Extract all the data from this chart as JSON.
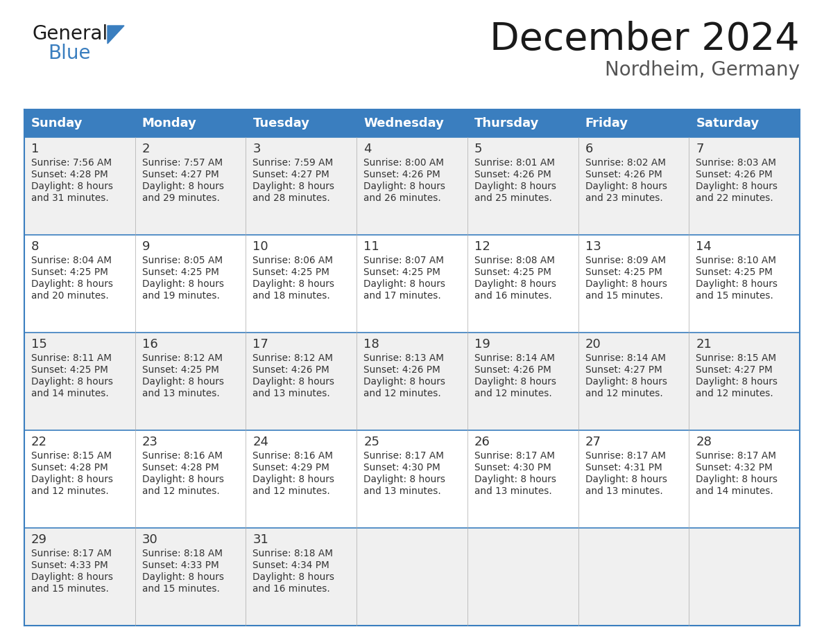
{
  "title": "December 2024",
  "subtitle": "Nordheim, Germany",
  "header_bg_color": "#3a7ebf",
  "header_text_color": "#ffffff",
  "day_names": [
    "Sunday",
    "Monday",
    "Tuesday",
    "Wednesday",
    "Thursday",
    "Friday",
    "Saturday"
  ],
  "cell_bg_even": "#f0f0f0",
  "cell_bg_odd": "#ffffff",
  "border_color": "#3a7ebf",
  "title_color": "#1a1a1a",
  "day_number_color": "#333333",
  "cell_text_color": "#333333",
  "subtitle_color": "#555555",
  "days": [
    {
      "day": 1,
      "col": 0,
      "row": 0,
      "sunrise": "7:56 AM",
      "sunset": "4:28 PM",
      "daylight_min": "31 minutes."
    },
    {
      "day": 2,
      "col": 1,
      "row": 0,
      "sunrise": "7:57 AM",
      "sunset": "4:27 PM",
      "daylight_min": "29 minutes."
    },
    {
      "day": 3,
      "col": 2,
      "row": 0,
      "sunrise": "7:59 AM",
      "sunset": "4:27 PM",
      "daylight_min": "28 minutes."
    },
    {
      "day": 4,
      "col": 3,
      "row": 0,
      "sunrise": "8:00 AM",
      "sunset": "4:26 PM",
      "daylight_min": "26 minutes."
    },
    {
      "day": 5,
      "col": 4,
      "row": 0,
      "sunrise": "8:01 AM",
      "sunset": "4:26 PM",
      "daylight_min": "25 minutes."
    },
    {
      "day": 6,
      "col": 5,
      "row": 0,
      "sunrise": "8:02 AM",
      "sunset": "4:26 PM",
      "daylight_min": "23 minutes."
    },
    {
      "day": 7,
      "col": 6,
      "row": 0,
      "sunrise": "8:03 AM",
      "sunset": "4:26 PM",
      "daylight_min": "22 minutes."
    },
    {
      "day": 8,
      "col": 0,
      "row": 1,
      "sunrise": "8:04 AM",
      "sunset": "4:25 PM",
      "daylight_min": "20 minutes."
    },
    {
      "day": 9,
      "col": 1,
      "row": 1,
      "sunrise": "8:05 AM",
      "sunset": "4:25 PM",
      "daylight_min": "19 minutes."
    },
    {
      "day": 10,
      "col": 2,
      "row": 1,
      "sunrise": "8:06 AM",
      "sunset": "4:25 PM",
      "daylight_min": "18 minutes."
    },
    {
      "day": 11,
      "col": 3,
      "row": 1,
      "sunrise": "8:07 AM",
      "sunset": "4:25 PM",
      "daylight_min": "17 minutes."
    },
    {
      "day": 12,
      "col": 4,
      "row": 1,
      "sunrise": "8:08 AM",
      "sunset": "4:25 PM",
      "daylight_min": "16 minutes."
    },
    {
      "day": 13,
      "col": 5,
      "row": 1,
      "sunrise": "8:09 AM",
      "sunset": "4:25 PM",
      "daylight_min": "15 minutes."
    },
    {
      "day": 14,
      "col": 6,
      "row": 1,
      "sunrise": "8:10 AM",
      "sunset": "4:25 PM",
      "daylight_min": "15 minutes."
    },
    {
      "day": 15,
      "col": 0,
      "row": 2,
      "sunrise": "8:11 AM",
      "sunset": "4:25 PM",
      "daylight_min": "14 minutes."
    },
    {
      "day": 16,
      "col": 1,
      "row": 2,
      "sunrise": "8:12 AM",
      "sunset": "4:25 PM",
      "daylight_min": "13 minutes."
    },
    {
      "day": 17,
      "col": 2,
      "row": 2,
      "sunrise": "8:12 AM",
      "sunset": "4:26 PM",
      "daylight_min": "13 minutes."
    },
    {
      "day": 18,
      "col": 3,
      "row": 2,
      "sunrise": "8:13 AM",
      "sunset": "4:26 PM",
      "daylight_min": "12 minutes."
    },
    {
      "day": 19,
      "col": 4,
      "row": 2,
      "sunrise": "8:14 AM",
      "sunset": "4:26 PM",
      "daylight_min": "12 minutes."
    },
    {
      "day": 20,
      "col": 5,
      "row": 2,
      "sunrise": "8:14 AM",
      "sunset": "4:27 PM",
      "daylight_min": "12 minutes."
    },
    {
      "day": 21,
      "col": 6,
      "row": 2,
      "sunrise": "8:15 AM",
      "sunset": "4:27 PM",
      "daylight_min": "12 minutes."
    },
    {
      "day": 22,
      "col": 0,
      "row": 3,
      "sunrise": "8:15 AM",
      "sunset": "4:28 PM",
      "daylight_min": "12 minutes."
    },
    {
      "day": 23,
      "col": 1,
      "row": 3,
      "sunrise": "8:16 AM",
      "sunset": "4:28 PM",
      "daylight_min": "12 minutes."
    },
    {
      "day": 24,
      "col": 2,
      "row": 3,
      "sunrise": "8:16 AM",
      "sunset": "4:29 PM",
      "daylight_min": "12 minutes."
    },
    {
      "day": 25,
      "col": 3,
      "row": 3,
      "sunrise": "8:17 AM",
      "sunset": "4:30 PM",
      "daylight_min": "13 minutes."
    },
    {
      "day": 26,
      "col": 4,
      "row": 3,
      "sunrise": "8:17 AM",
      "sunset": "4:30 PM",
      "daylight_min": "13 minutes."
    },
    {
      "day": 27,
      "col": 5,
      "row": 3,
      "sunrise": "8:17 AM",
      "sunset": "4:31 PM",
      "daylight_min": "13 minutes."
    },
    {
      "day": 28,
      "col": 6,
      "row": 3,
      "sunrise": "8:17 AM",
      "sunset": "4:32 PM",
      "daylight_min": "14 minutes."
    },
    {
      "day": 29,
      "col": 0,
      "row": 4,
      "sunrise": "8:17 AM",
      "sunset": "4:33 PM",
      "daylight_min": "15 minutes."
    },
    {
      "day": 30,
      "col": 1,
      "row": 4,
      "sunrise": "8:18 AM",
      "sunset": "4:33 PM",
      "daylight_min": "15 minutes."
    },
    {
      "day": 31,
      "col": 2,
      "row": 4,
      "sunrise": "8:18 AM",
      "sunset": "4:34 PM",
      "daylight_min": "16 minutes."
    }
  ],
  "num_rows": 5,
  "num_cols": 7,
  "fig_width": 11.88,
  "fig_height": 9.18,
  "dpi": 100
}
